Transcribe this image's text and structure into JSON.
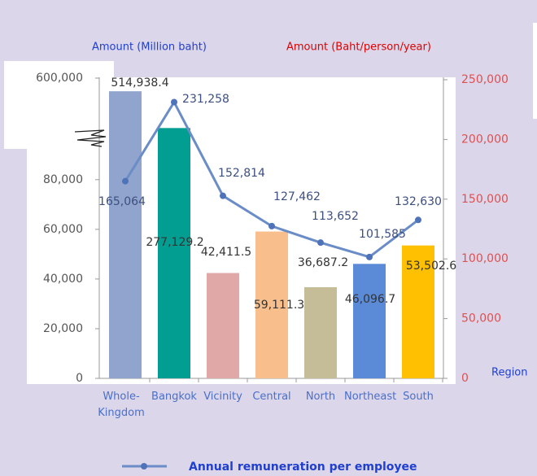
{
  "chart_data": {
    "type": "bar-line",
    "y_label": "Amount  (Million baht)",
    "y2_label": "Amount (Baht/person/year)",
    "x_label": "Region",
    "categories": [
      "Whole-Kingdom",
      "Bangkok",
      "Vicinity",
      "Central",
      "North",
      "Northeast",
      "South"
    ],
    "ylim": [
      0,
      600000
    ],
    "ybreak": [
      95000,
      200000
    ],
    "yticks": [
      {
        "value": 0,
        "label": "0"
      },
      {
        "value": 20000,
        "label": "20,000"
      },
      {
        "value": 40000,
        "label": "40,000"
      },
      {
        "value": 60000,
        "label": "60,000"
      },
      {
        "value": 80000,
        "label": "80,000"
      },
      {
        "value": 600000,
        "label": "600,000"
      }
    ],
    "y2lim": [
      0,
      250000
    ],
    "y2ticks": [
      {
        "value": 0,
        "label": "0"
      },
      {
        "value": 50000,
        "label": "50,000"
      },
      {
        "value": 100000,
        "label": "100,000"
      },
      {
        "value": 150000,
        "label": "150,000"
      },
      {
        "value": 200000,
        "label": "200,000"
      },
      {
        "value": 250000,
        "label": "250,000"
      }
    ],
    "bars": {
      "colors": [
        "#91a4cd",
        "#039e92",
        "#e0a8a6",
        "#f8bf8d",
        "#c4bd97",
        "#5b8bd7",
        "#fec000"
      ],
      "values": [
        514938.4,
        277129.2,
        42411.5,
        59111.3,
        36687.2,
        46096.7,
        53502.6
      ],
      "value_labels": [
        "514,938.4",
        "277,129.2",
        "42,411.5",
        "59,111.3",
        "36,687.2",
        "46,096.7",
        "53,502.6"
      ]
    },
    "series": [
      {
        "name": "Annual remuneration per employee",
        "color": "#6a8cc7",
        "axis": "y2",
        "values": [
          165064,
          231258,
          152814,
          127462,
          113652,
          101585,
          132630
        ],
        "value_labels": [
          "165,064",
          "231,258",
          "152,814",
          "127,462",
          "113,652",
          "101,585",
          "132,630"
        ]
      }
    ]
  }
}
